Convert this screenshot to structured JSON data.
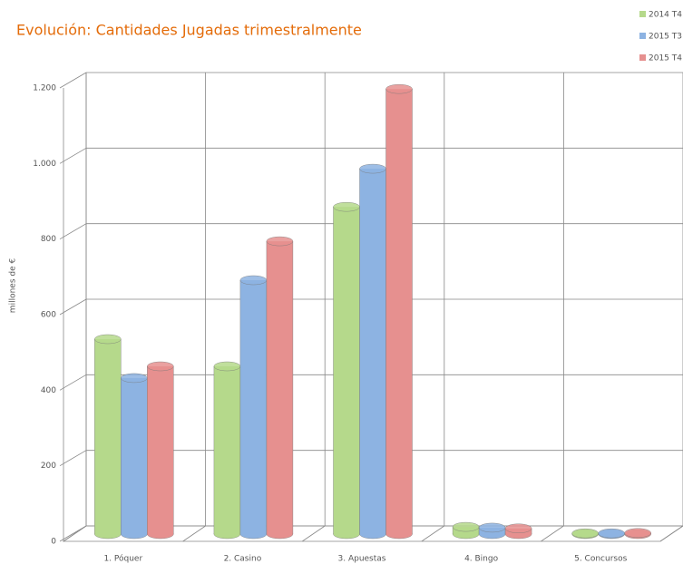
{
  "chart_data": {
    "type": "bar3d",
    "title": "Evolución: Cantidades Jugadas trimestralmente",
    "ylabel": "millones de €",
    "categories": [
      "1. Póquer",
      "2. Casino",
      "3. Apuestas",
      "4. Bingo",
      "5. Concursos"
    ],
    "series": [
      {
        "name": "2014 T4",
        "color": "#b5d98b",
        "values": [
          516,
          444,
          866,
          19,
          2
        ]
      },
      {
        "name": "2015 T3",
        "color": "#8db3e2",
        "values": [
          413,
          672,
          967,
          17,
          2
        ]
      },
      {
        "name": "2015 T4",
        "color": "#e6908f",
        "values": [
          444,
          775,
          1178,
          15,
          3
        ]
      }
    ],
    "ylim": [
      0,
      1200
    ],
    "yticks": [
      0,
      200,
      400,
      600,
      800,
      {
        "value": 1000,
        "label": "1.000"
      },
      {
        "value": 1200,
        "label": "1.200"
      }
    ],
    "grid": true,
    "legend": "top-right"
  }
}
